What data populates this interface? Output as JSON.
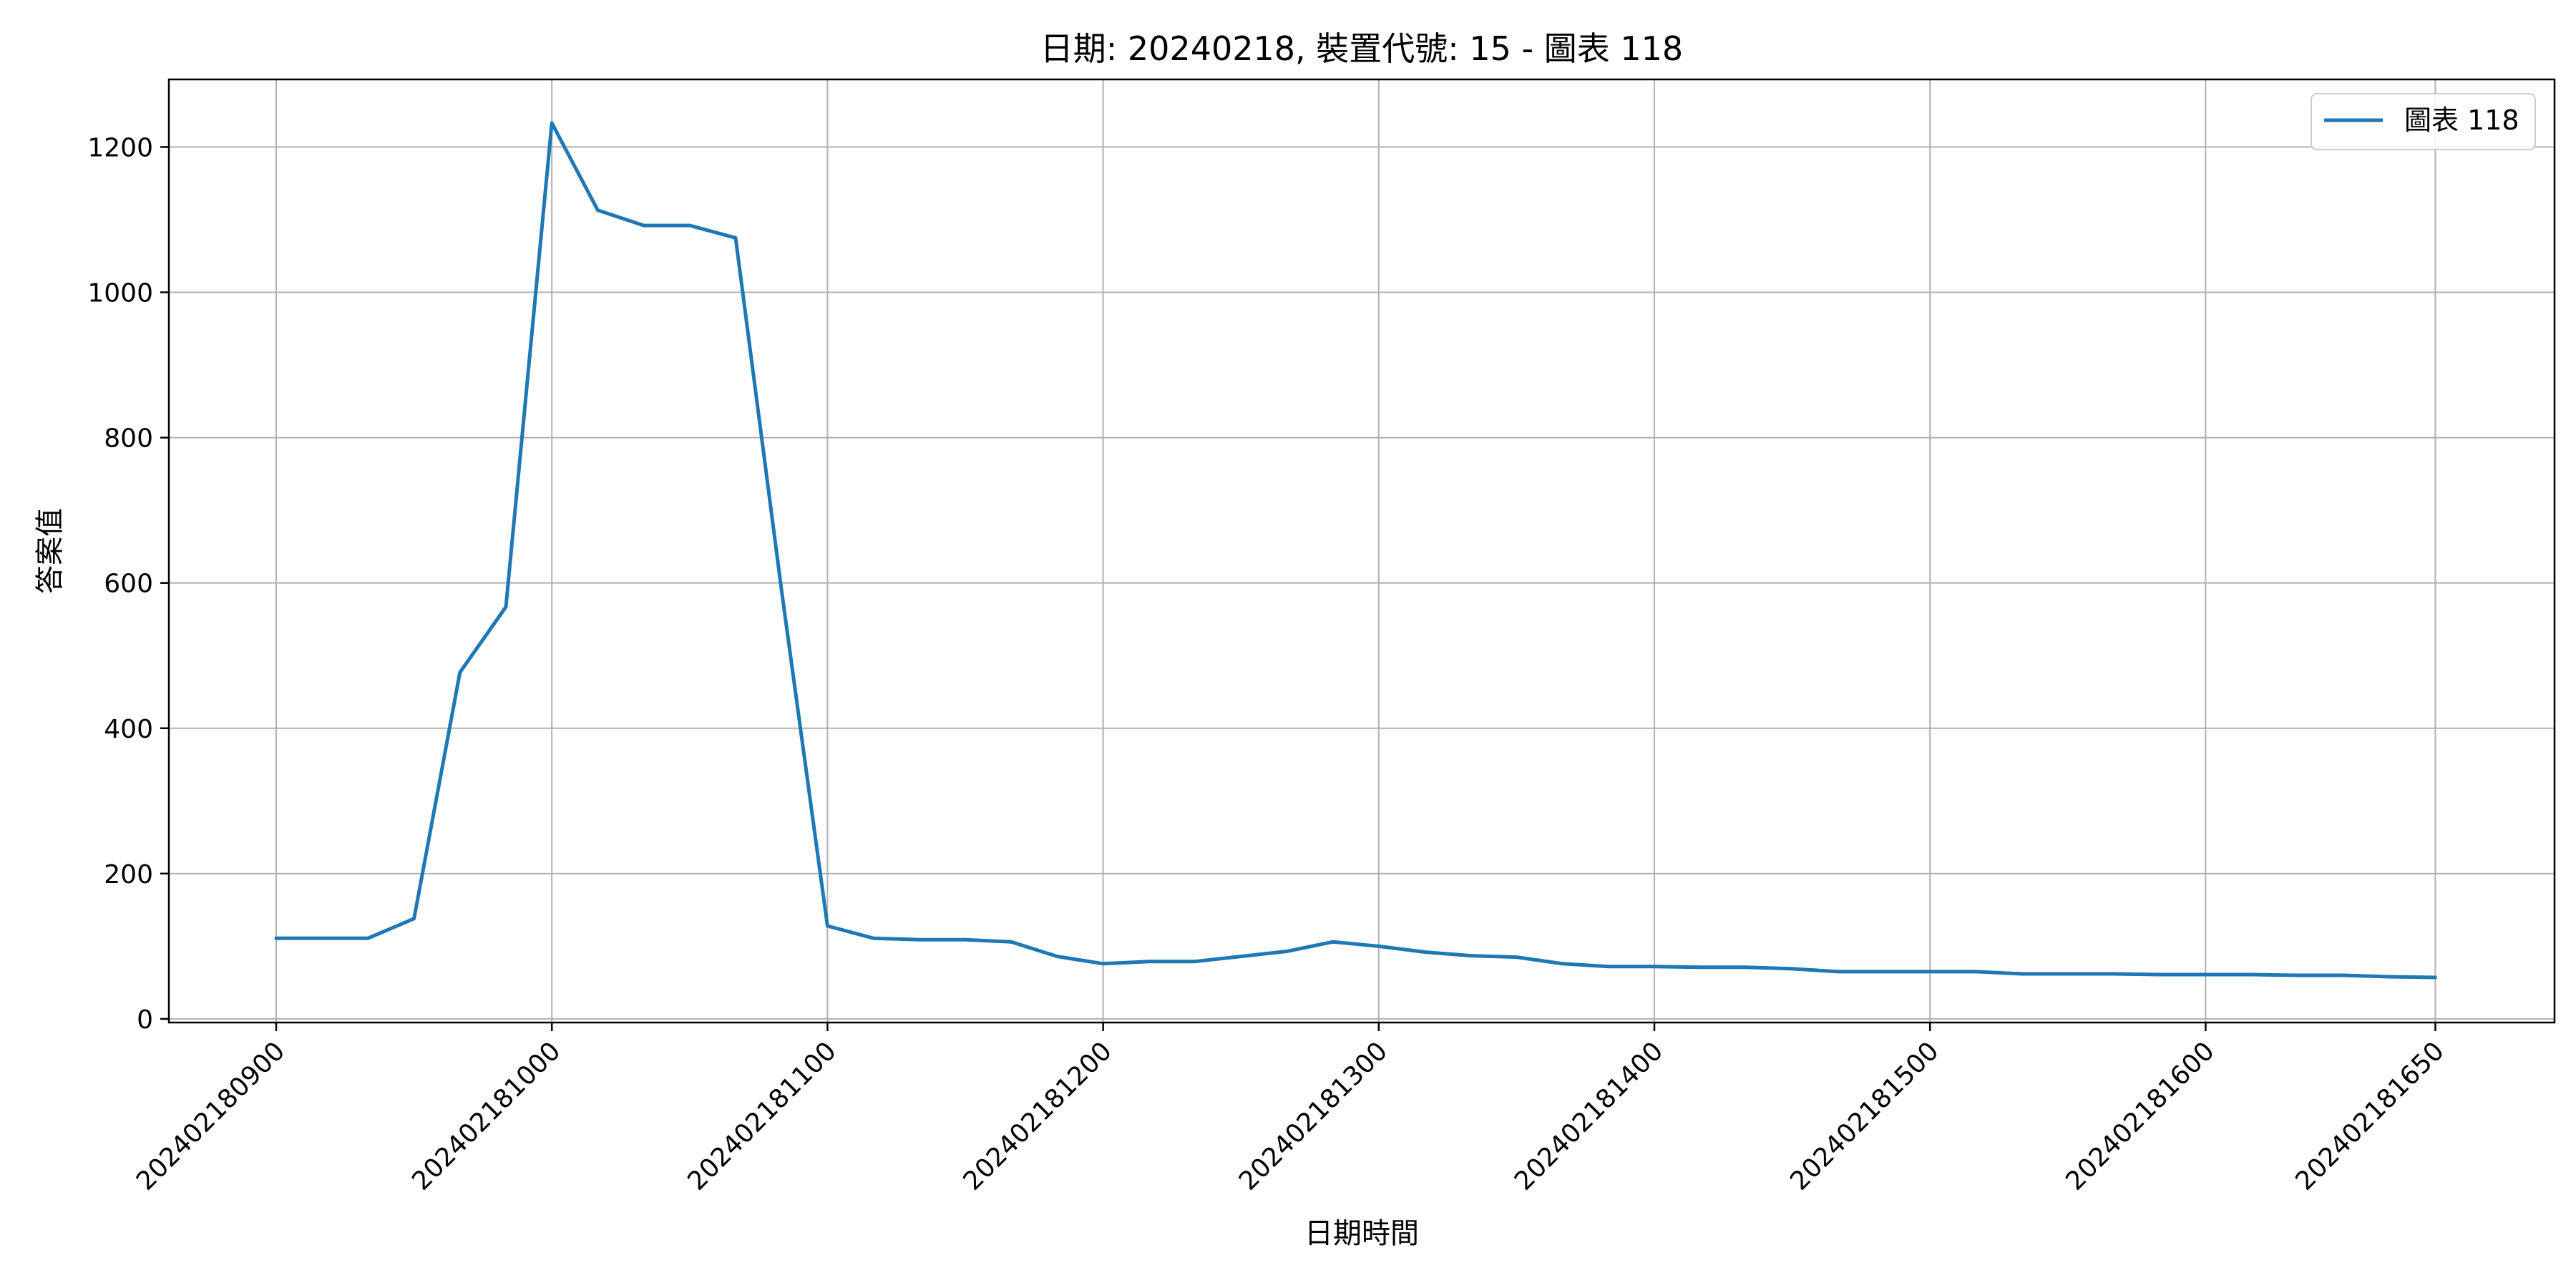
{
  "chart_data": {
    "type": "line",
    "title": "日期: 20240218, 裝置代號: 15 - 圖表 118",
    "xlabel": "日期時間",
    "ylabel": "答案值",
    "x_tick_labels": [
      "202402180900",
      "202402181000",
      "202402181100",
      "202402181200",
      "202402181300",
      "202402181400",
      "202402181500",
      "202402181600",
      "202402181650"
    ],
    "y_ticks": [
      0,
      200,
      400,
      600,
      800,
      1000,
      1200
    ],
    "ylim": [
      -5,
      1293
    ],
    "grid": true,
    "legend_position": "top-right",
    "series": [
      {
        "name": "圖表 118",
        "color": "#1f77b4",
        "x": [
          "202402180900",
          "202402180910",
          "202402180920",
          "202402180930",
          "202402180940",
          "202402180950",
          "202402181000",
          "202402181010",
          "202402181020",
          "202402181030",
          "202402181040",
          "202402181050",
          "202402181100",
          "202402181110",
          "202402181120",
          "202402181130",
          "202402181140",
          "202402181150",
          "202402181200",
          "202402181210",
          "202402181220",
          "202402181230",
          "202402181240",
          "202402181250",
          "202402181300",
          "202402181310",
          "202402181320",
          "202402181330",
          "202402181340",
          "202402181350",
          "202402181400",
          "202402181410",
          "202402181420",
          "202402181430",
          "202402181440",
          "202402181450",
          "202402181500",
          "202402181510",
          "202402181520",
          "202402181530",
          "202402181540",
          "202402181550",
          "202402181600",
          "202402181610",
          "202402181620",
          "202402181630",
          "202402181640",
          "202402181650"
        ],
        "values": [
          111,
          111,
          111,
          138,
          477,
          567,
          1233,
          1113,
          1092,
          1092,
          1075,
          590,
          128,
          111,
          109,
          109,
          106,
          86,
          76,
          79,
          79,
          86,
          93,
          106,
          100,
          92,
          87,
          85,
          76,
          72,
          72,
          71,
          71,
          69,
          65,
          65,
          65,
          65,
          62,
          62,
          62,
          61,
          61,
          61,
          60,
          60,
          58,
          57
        ]
      }
    ]
  }
}
